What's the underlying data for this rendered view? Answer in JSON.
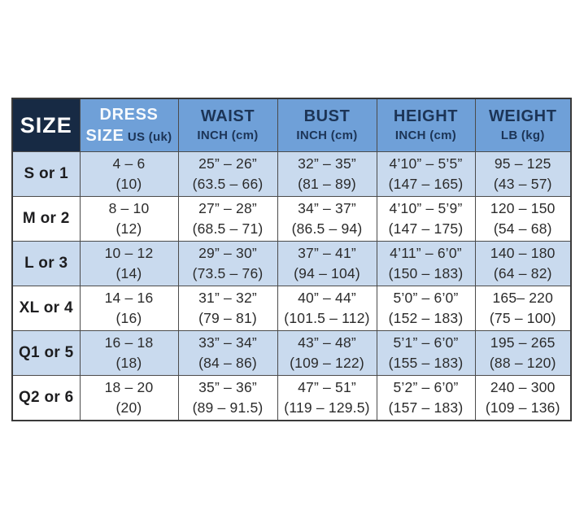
{
  "colors": {
    "navy_header_bg": "#172A44",
    "blue_header_bg": "#6FA0D8",
    "zebra_row_blue": "#C9DAEE",
    "zebra_row_white": "#FFFFFF",
    "header_text_navy": "#1C3456",
    "grid_border": "#4B4B4B"
  },
  "chart_data": {
    "type": "table",
    "columns": [
      "SIZE",
      "DRESS SIZE US (uk)",
      "WAIST INCH (cm)",
      "BUST INCH (cm)",
      "HEIGHT INCH (cm)",
      "WEIGHT LB (kg)"
    ],
    "header": {
      "size": "SIZE",
      "dress": {
        "line1": "DRESS",
        "line2": "SIZE",
        "sub": "US (uk)"
      },
      "waist": {
        "line1": "WAIST",
        "sub": "INCH (cm)"
      },
      "bust": {
        "line1": "BUST",
        "sub": "INCH (cm)"
      },
      "height": {
        "line1": "HEIGHT",
        "sub": "INCH (cm)"
      },
      "weight": {
        "line1": "WEIGHT",
        "sub": "LB (kg)"
      }
    },
    "rows": [
      {
        "label": "S or 1",
        "dress": [
          "4 – 6",
          "(10)"
        ],
        "waist": [
          "25” – 26”",
          "(63.5 – 66)"
        ],
        "bust": [
          "32” – 35”",
          "(81 – 89)"
        ],
        "height": [
          "4’10” – 5’5”",
          "(147 – 165)"
        ],
        "weight": [
          "95 – 125",
          "(43 – 57)"
        ]
      },
      {
        "label": "M or 2",
        "dress": [
          "8 – 10",
          "(12)"
        ],
        "waist": [
          "27” – 28”",
          "(68.5 – 71)"
        ],
        "bust": [
          "34” – 37”",
          "(86.5 – 94)"
        ],
        "height": [
          "4’10” – 5’9”",
          "(147 – 175)"
        ],
        "weight": [
          "120 – 150",
          "(54 – 68)"
        ]
      },
      {
        "label": "L or 3",
        "dress": [
          "10 – 12",
          "(14)"
        ],
        "waist": [
          "29” – 30”",
          "(73.5 – 76)"
        ],
        "bust": [
          "37” – 41”",
          "(94 – 104)"
        ],
        "height": [
          "4’11” – 6’0”",
          "(150 – 183)"
        ],
        "weight": [
          "140 – 180",
          "(64 – 82)"
        ]
      },
      {
        "label": "XL or 4",
        "dress": [
          "14 – 16",
          "(16)"
        ],
        "waist": [
          "31” – 32”",
          "(79 – 81)"
        ],
        "bust": [
          "40” – 44”",
          "(101.5 – 112)"
        ],
        "height": [
          "5’0” – 6’0”",
          "(152 – 183)"
        ],
        "weight": [
          "165– 220",
          "(75 – 100)"
        ]
      },
      {
        "label": "Q1 or 5",
        "dress": [
          "16 – 18",
          "(18)"
        ],
        "waist": [
          "33” – 34”",
          "(84 – 86)"
        ],
        "bust": [
          "43” – 48”",
          "(109 – 122)"
        ],
        "height": [
          "5’1” – 6’0”",
          "(155 – 183)"
        ],
        "weight": [
          "195 – 265",
          "(88 – 120)"
        ]
      },
      {
        "label": "Q2 or 6",
        "dress": [
          "18 – 20",
          "(20)"
        ],
        "waist": [
          "35” – 36”",
          "(89 – 91.5)"
        ],
        "bust": [
          "47” – 51”",
          "(119 – 129.5)"
        ],
        "height": [
          "5’2” – 6’0”",
          "(157 – 183)"
        ],
        "weight": [
          "240 – 300",
          "(109 – 136)"
        ]
      }
    ]
  }
}
